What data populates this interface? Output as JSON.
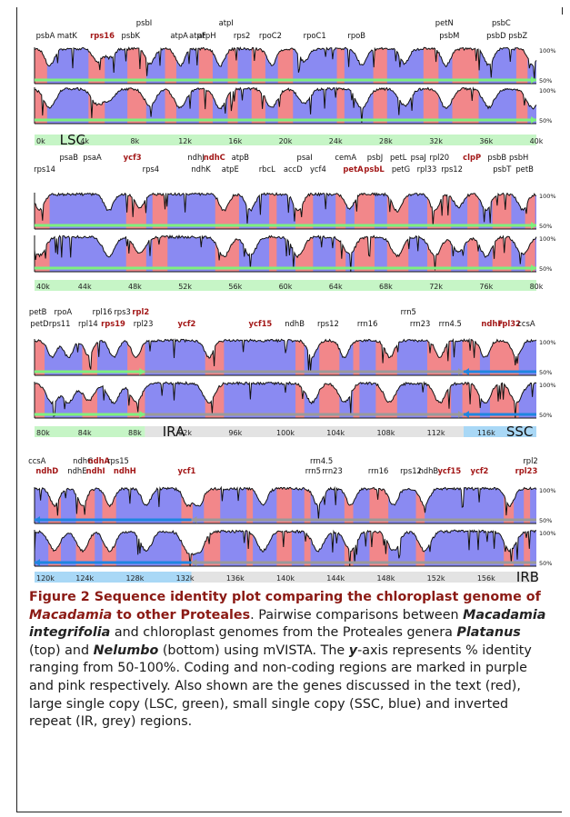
{
  "figure": {
    "caption": {
      "head_a": "Figure 2 Sequence identity plot comparing the chloroplast genome of ",
      "head_b": "Macadamia",
      "head_c": " to other Proteales",
      "body_1": ". Pairwise comparisons between ",
      "species_a": "Macadamia integrifolia",
      "body_2": " and chloroplast genomes from the Proteales genera ",
      "genus_a": "Platanus",
      "body_3": " (top) and ",
      "genus_b": "Nelumbo",
      "body_4": " (bottom) using mVISTA. The ",
      "axis_letter": "y",
      "body_5": "-axis represents % identity ranging from 50-100%. Coding and non-coding regions are marked in purple and pink respectively. Also shown are the genes discussed in the text (red), large single copy (LSC, green), small single copy (SSC, blue) and inverted repeat (IR, grey) regions."
    },
    "colors": {
      "coding": "#8a8af2",
      "noncoding": "#f2878a",
      "lsc": "#7ef07e",
      "ssc": "#1f86e0",
      "ir": "#9a9a9a",
      "lsc_band": "#c6f5c6",
      "ssc_band": "#a9d8f6",
      "ir_band": "#e3e3e3",
      "highlight_gene": "#a31818"
    },
    "y_labels": {
      "top": "100%",
      "bottom": "50%"
    }
  },
  "chart_data": [
    {
      "type": "area",
      "panel": "1",
      "x_start_kb": 0,
      "x_end_kb": 40,
      "ticks": [
        "0k",
        "4k",
        "8k",
        "12k",
        "16k",
        "20k",
        "24k",
        "28k",
        "32k",
        "36k",
        "40k"
      ],
      "region_labels": [
        "LSC"
      ],
      "ylim": [
        50,
        100
      ],
      "series": [
        {
          "name": "Platanus"
        },
        {
          "name": "Nelumbo"
        }
      ],
      "genes_row1": [
        {
          "label": "psbA",
          "x": 1.3
        },
        {
          "label": "matK",
          "x": 3.9
        },
        {
          "label": "rps16",
          "x": 8.1,
          "red": true
        },
        {
          "label": "psbK",
          "x": 11.5
        },
        {
          "label": "atpA",
          "x": 17.3
        },
        {
          "label": "atpF",
          "x": 19.5
        },
        {
          "label": "atpH",
          "x": 20.6
        },
        {
          "label": "rps2",
          "x": 24.8
        },
        {
          "label": "rpoC2",
          "x": 28.2
        },
        {
          "label": "rpoC1",
          "x": 33.5
        },
        {
          "label": "rpoB",
          "x": 38.5
        },
        {
          "label": "psbM",
          "x": 49.6
        },
        {
          "label": "psbD",
          "x": 55.2
        },
        {
          "label": "psbZ",
          "x": 57.8
        }
      ],
      "genes_row0": [
        {
          "label": "psbI",
          "x": 13.1
        },
        {
          "label": "atpI",
          "x": 22.9
        },
        {
          "label": "petN",
          "x": 49.0
        },
        {
          "label": "psbC",
          "x": 55.8
        }
      ]
    },
    {
      "type": "area",
      "panel": "2",
      "x_start_kb": 40,
      "x_end_kb": 80,
      "ticks": [
        "40k",
        "44k",
        "48k",
        "52k",
        "56k",
        "60k",
        "64k",
        "68k",
        "72k",
        "76k",
        "80k"
      ],
      "region_labels": [],
      "ylim": [
        50,
        100
      ],
      "series": [
        {
          "name": "Platanus"
        },
        {
          "name": "Nelumbo"
        }
      ],
      "genes_row0": [
        {
          "label": "psaB",
          "x": 4.1
        },
        {
          "label": "psaA",
          "x": 6.9
        },
        {
          "label": "ycf3",
          "x": 11.7,
          "red": true
        },
        {
          "label": "ndhJ",
          "x": 19.3
        },
        {
          "label": "ndhC",
          "x": 21.5,
          "red": true
        },
        {
          "label": "atpB",
          "x": 24.6
        },
        {
          "label": "psaI",
          "x": 32.3
        },
        {
          "label": "cemA",
          "x": 37.2
        },
        {
          "label": "psbJ",
          "x": 40.7
        },
        {
          "label": "petL",
          "x": 43.5
        },
        {
          "label": "psaJ",
          "x": 45.9
        },
        {
          "label": "rpl20",
          "x": 48.4
        },
        {
          "label": "clpP",
          "x": 52.3,
          "red": true
        },
        {
          "label": "psbB",
          "x": 55.3
        },
        {
          "label": "psbH",
          "x": 57.9
        }
      ],
      "genes_row1": [
        {
          "label": "rps14",
          "x": 1.2
        },
        {
          "label": "rps4",
          "x": 13.9
        },
        {
          "label": "ndhK",
          "x": 19.9
        },
        {
          "label": "atpE",
          "x": 23.4
        },
        {
          "label": "rbcL",
          "x": 27.8
        },
        {
          "label": "accD",
          "x": 30.9
        },
        {
          "label": "ycf4",
          "x": 33.9
        },
        {
          "label": "petA",
          "x": 38.1,
          "red": true
        },
        {
          "label": "psbL",
          "x": 40.6,
          "red": true
        },
        {
          "label": "petG",
          "x": 43.8
        },
        {
          "label": "rpl33",
          "x": 46.9
        },
        {
          "label": "rps12",
          "x": 49.9
        },
        {
          "label": "psbT",
          "x": 55.9
        },
        {
          "label": "petB",
          "x": 58.6
        }
      ]
    },
    {
      "type": "area",
      "panel": "3",
      "x_start_kb": 80,
      "x_end_kb": 120,
      "ticks": [
        "80k",
        "84k",
        "88k",
        "92k",
        "96k",
        "100k",
        "104k",
        "108k",
        "112k",
        "116k"
      ],
      "region_labels": [
        "IRA",
        "SSC"
      ],
      "ylim": [
        50,
        100
      ],
      "series": [
        {
          "name": "Platanus"
        },
        {
          "name": "Nelumbo"
        }
      ],
      "genes_row0": [
        {
          "label": "petB",
          "x": 0.4
        },
        {
          "label": "rpoA",
          "x": 3.4
        },
        {
          "label": "rpl16",
          "x": 8.1
        },
        {
          "label": "rps3",
          "x": 10.5
        },
        {
          "label": "rpl2",
          "x": 12.7,
          "red": true
        },
        {
          "label": "rrn5",
          "x": 44.7
        }
      ],
      "genes_row1": [
        {
          "label": "petD",
          "x": 0.6
        },
        {
          "label": "rps11",
          "x": 3.0
        },
        {
          "label": "rpl14",
          "x": 6.4
        },
        {
          "label": "rps19",
          "x": 9.4,
          "red": true
        },
        {
          "label": "rpl23",
          "x": 13.0
        },
        {
          "label": "ycf2",
          "x": 18.2,
          "red": true
        },
        {
          "label": "ycf15",
          "x": 27.0,
          "red": true
        },
        {
          "label": "ndhB",
          "x": 31.1
        },
        {
          "label": "rps12",
          "x": 35.1
        },
        {
          "label": "rrn16",
          "x": 39.8
        },
        {
          "label": "rrn23",
          "x": 46.1
        },
        {
          "label": "rrn4.5",
          "x": 49.7
        },
        {
          "label": "ndhF",
          "x": 54.7,
          "red": true
        },
        {
          "label": "rpl32",
          "x": 56.8,
          "red": true
        },
        {
          "label": "ccsA",
          "x": 58.8
        }
      ]
    },
    {
      "type": "area",
      "panel": "4",
      "x_start_kb": 120,
      "x_end_kb": 160,
      "ticks": [
        "120k",
        "124k",
        "128k",
        "132k",
        "136k",
        "140k",
        "144k",
        "148k",
        "152k",
        "156k"
      ],
      "region_labels": [
        "IRB"
      ],
      "ylim": [
        50,
        100
      ],
      "series": [
        {
          "name": "Platanus"
        },
        {
          "name": "Nelumbo"
        }
      ],
      "genes_row0": [
        {
          "label": "ccsA",
          "x": 0.3
        },
        {
          "label": "ndhG",
          "x": 5.8
        },
        {
          "label": "ndhA",
          "x": 7.7,
          "red": true
        },
        {
          "label": "rps15",
          "x": 10.0
        },
        {
          "label": "rrn4.5",
          "x": 34.3
        },
        {
          "label": "rpl2",
          "x": 59.3
        }
      ],
      "genes_row1": [
        {
          "label": "ndhD",
          "x": 1.5,
          "red": true
        },
        {
          "label": "ndhE",
          "x": 5.1
        },
        {
          "label": "ndhI",
          "x": 7.3,
          "red": true
        },
        {
          "label": "ndhH",
          "x": 10.8,
          "red": true
        },
        {
          "label": "ycf1",
          "x": 18.2,
          "red": true
        },
        {
          "label": "rrn5",
          "x": 33.3
        },
        {
          "label": "rrn23",
          "x": 35.6
        },
        {
          "label": "rrn16",
          "x": 41.1
        },
        {
          "label": "rps12",
          "x": 45.0
        },
        {
          "label": "ndhB",
          "x": 47.1
        },
        {
          "label": "ycf15",
          "x": 49.6,
          "red": true
        },
        {
          "label": "ycf2",
          "x": 53.2,
          "red": true
        },
        {
          "label": "rpl23",
          "x": 58.8,
          "red": true
        }
      ]
    }
  ]
}
